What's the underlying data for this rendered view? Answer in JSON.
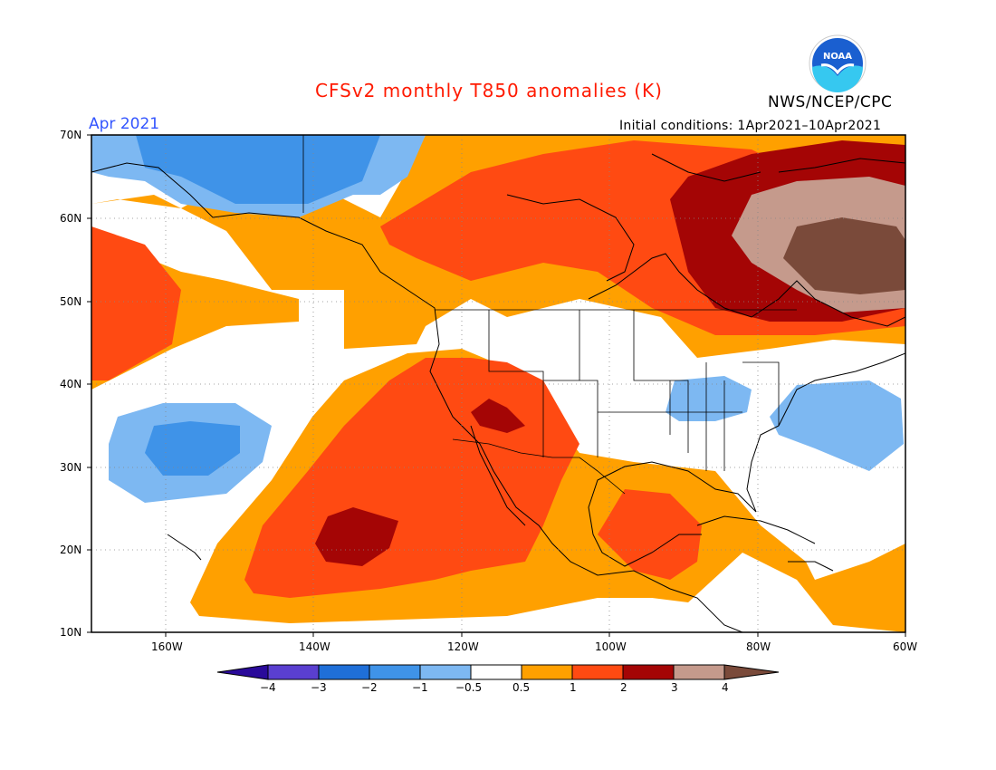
{
  "header": {
    "title": "CFSv2 monthly T850 anomalies (K)",
    "month": "Apr 2021",
    "initial_conditions": "Initial conditions: 1Apr2021–10Apr2021",
    "agency": "NWS/NCEP/CPC",
    "logo_text": "NOAA"
  },
  "map": {
    "lat_labels": [
      "70N",
      "60N",
      "50N",
      "40N",
      "30N",
      "20N",
      "10N"
    ],
    "lon_labels": [
      "160W",
      "140W",
      "120W",
      "100W",
      "80W",
      "60W"
    ],
    "lat_range": [
      10,
      70
    ],
    "lon_range": [
      -170,
      -60
    ],
    "grid": true
  },
  "colorbar": {
    "labels": [
      "−4",
      "−3",
      "−2",
      "−1",
      "−0.5",
      "0.5",
      "1",
      "2",
      "3",
      "4"
    ],
    "colors": [
      "#2a0a9a",
      "#5a3fd0",
      "#1f6fd8",
      "#3f93e8",
      "#7db8f2",
      "#ffffff",
      "#ffa000",
      "#ff4a12",
      "#a40505",
      "#c59a8c",
      "#7a4a3a"
    ]
  }
}
